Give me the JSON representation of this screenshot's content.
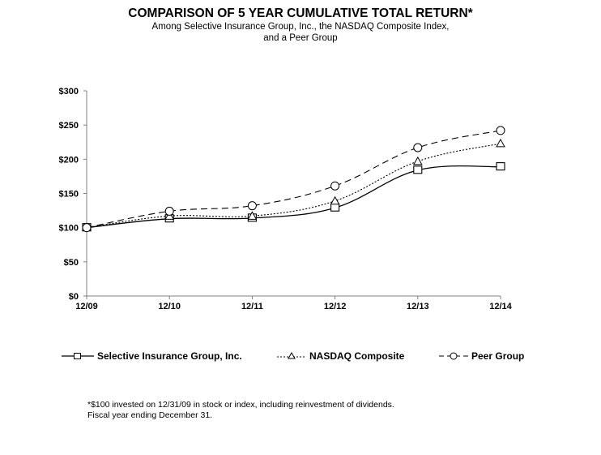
{
  "chart_data": {
    "type": "line",
    "title": "COMPARISON OF 5 YEAR CUMULATIVE TOTAL RETURN*",
    "subtitle_lines": [
      "Among Selective Insurance Group, Inc., the NASDAQ  Composite Index,",
      "and a Peer Group"
    ],
    "categories": [
      "12/09",
      "12/10",
      "12/11",
      "12/12",
      "12/13",
      "12/14"
    ],
    "y_ticks": [
      "$0",
      "$50",
      "$100",
      "$150",
      "$200",
      "$250",
      "$300"
    ],
    "y_tick_values": [
      0,
      50,
      100,
      150,
      200,
      250,
      300
    ],
    "ylim": [
      0,
      300
    ],
    "xlabel": "",
    "ylabel": "",
    "grid": false,
    "legend_position": "bottom",
    "series": [
      {
        "name": "Selective Insurance Group, Inc.",
        "marker": "square",
        "line": "solid",
        "values": [
          100,
          113,
          114,
          129,
          184,
          189
        ]
      },
      {
        "name": "NASDAQ Composite",
        "marker": "triangle",
        "line": "dotted",
        "values": [
          100,
          117,
          117,
          139,
          197,
          223
        ]
      },
      {
        "name": "Peer Group",
        "marker": "circle",
        "line": "dashed",
        "values": [
          100,
          124,
          132,
          161,
          217,
          242
        ]
      }
    ],
    "footnotes": [
      "*$100 invested on 12/31/09 in stock or index, including reinvestment of dividends.",
      "Fiscal year ending December 31."
    ]
  }
}
